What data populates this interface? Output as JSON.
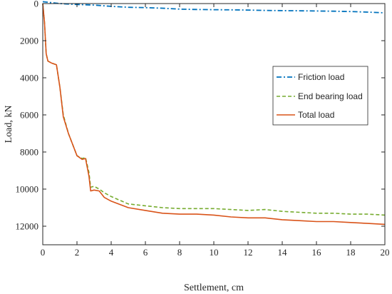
{
  "chart_data": {
    "type": "line",
    "title": "",
    "xlabel": "Settlement, cm",
    "ylabel": "Load, kN",
    "xlim": [
      0,
      20
    ],
    "ylim": [
      0,
      13000
    ],
    "y_reversed": true,
    "x_ticks": [
      0,
      2,
      4,
      6,
      8,
      10,
      12,
      14,
      16,
      18,
      20
    ],
    "y_ticks": [
      0,
      2000,
      4000,
      6000,
      8000,
      10000,
      12000
    ],
    "grid": false,
    "legend_position": "right",
    "series": [
      {
        "name": "Friction load",
        "color": "#0072BD",
        "dash": "dash-dot",
        "x": [
          0,
          0.5,
          1,
          2,
          3,
          4,
          5,
          6,
          7,
          8,
          9,
          10,
          11,
          12,
          13,
          14,
          15,
          16,
          17,
          18,
          19,
          20
        ],
        "y": [
          -100,
          -50,
          0,
          50,
          80,
          150,
          200,
          220,
          250,
          300,
          320,
          330,
          340,
          350,
          370,
          380,
          390,
          400,
          410,
          430,
          460,
          500
        ]
      },
      {
        "name": "End bearing load",
        "color": "#77AC30",
        "dash": "dashed",
        "x": [
          0,
          0.1,
          0.2,
          0.3,
          0.5,
          0.8,
          1,
          1.2,
          1.5,
          2,
          2.3,
          2.5,
          2.7,
          2.8,
          3,
          3.3,
          3.6,
          4,
          5,
          6,
          7,
          8,
          9,
          10,
          11,
          12,
          13,
          14,
          15,
          16,
          17,
          18,
          19,
          20
        ],
        "y": [
          0,
          1000,
          2700,
          3100,
          3200,
          3300,
          4500,
          6000,
          7000,
          8200,
          8350,
          8300,
          9100,
          9900,
          9850,
          10000,
          10200,
          10400,
          10800,
          10900,
          11000,
          11050,
          11050,
          11050,
          11100,
          11150,
          11100,
          11200,
          11250,
          11300,
          11300,
          11350,
          11350,
          11400
        ]
      },
      {
        "name": "Total load",
        "color": "#D95319",
        "dash": "solid",
        "x": [
          0,
          0.1,
          0.2,
          0.3,
          0.5,
          0.8,
          1,
          1.2,
          1.5,
          2,
          2.3,
          2.5,
          2.7,
          2.8,
          3,
          3.3,
          3.6,
          4,
          5,
          6,
          7,
          8,
          9,
          10,
          11,
          12,
          13,
          14,
          15,
          16,
          17,
          18,
          19,
          20
        ],
        "y": [
          0,
          1000,
          2700,
          3100,
          3200,
          3300,
          4500,
          6100,
          7000,
          8200,
          8400,
          8350,
          9300,
          10100,
          10050,
          10100,
          10450,
          10650,
          11000,
          11150,
          11300,
          11350,
          11350,
          11400,
          11500,
          11550,
          11550,
          11650,
          11700,
          11750,
          11750,
          11800,
          11850,
          11900
        ]
      }
    ]
  }
}
